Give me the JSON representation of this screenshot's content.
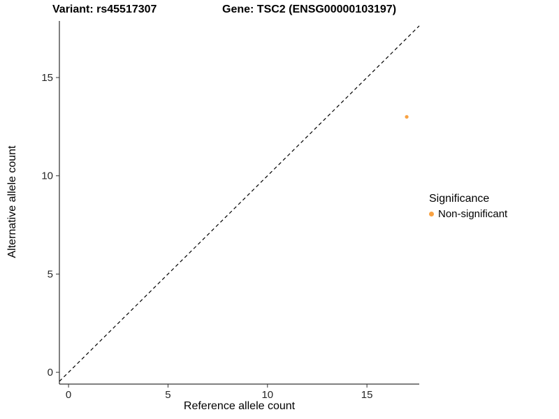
{
  "titles": {
    "variant": "Variant: rs45517307",
    "gene": "Gene: TSC2 (ENSG00000103197)"
  },
  "chart_data": {
    "type": "scatter",
    "xlabel": "Reference allele count",
    "ylabel": "Alternative allele count",
    "x_ticks": [
      0,
      5,
      10,
      15
    ],
    "y_ticks": [
      0,
      5,
      10,
      15
    ],
    "xlim": [
      -0.46,
      17.63
    ],
    "ylim": [
      -0.6,
      17.88
    ],
    "grid": "off",
    "reference_line": {
      "kind": "identity",
      "slope": 1,
      "intercept": 0,
      "style": "dashed",
      "color": "#000000"
    },
    "series": [
      {
        "name": "Non-significant",
        "color": "#F9A242",
        "points": [
          {
            "x": 17,
            "y": 13
          }
        ]
      }
    ],
    "legend": {
      "title": "Significance",
      "position": "right",
      "entries": [
        {
          "label": "Non-significant",
          "color": "#F9A242"
        }
      ]
    }
  }
}
